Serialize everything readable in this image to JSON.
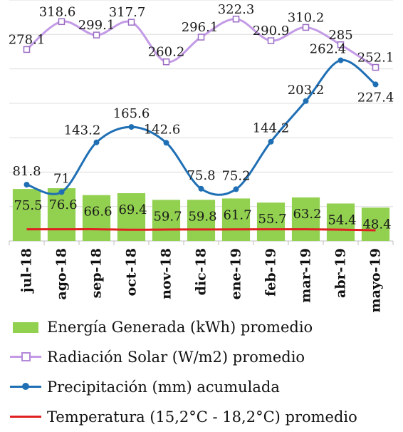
{
  "chart_data": {
    "type": "bar",
    "categories": [
      "jul-18",
      "ago-18",
      "sep-18",
      "oct-18",
      "nov-18",
      "dic-18",
      "ene-19",
      "feb-19",
      "mar-19",
      "abr-19",
      "mayo-19"
    ],
    "series": [
      {
        "name": "Energía Generada (kWh) promedio",
        "kind": "bar",
        "color": "#92d050",
        "values": [
          75.5,
          76.6,
          66.6,
          69.4,
          59.7,
          59.8,
          61.7,
          55.7,
          63.2,
          54.4,
          48.4
        ]
      },
      {
        "name": "Radiación Solar (W/m2) promedio",
        "kind": "line",
        "color": "#c39be6",
        "marker": "square",
        "values": [
          278.1,
          318.6,
          299.1,
          317.7,
          260.2,
          296.1,
          322.3,
          290.9,
          310.2,
          285,
          252.1
        ]
      },
      {
        "name": "Precipitación (mm) acumulada",
        "kind": "line",
        "color": "#1f6fb5",
        "marker": "circle",
        "values": [
          81.8,
          71,
          143.2,
          165.6,
          142.6,
          75.8,
          75.2,
          144.2,
          203.2,
          262.4,
          227.4
        ]
      },
      {
        "name": "Temperatura (15,2°C - 18,2°C) promedio",
        "kind": "line",
        "color": "#e02020",
        "marker": "none",
        "values": [
          16.9,
          16.9,
          17.0,
          16.3,
          16.6,
          16.7,
          16.8,
          16.9,
          16.9,
          16.4,
          15.5
        ]
      }
    ],
    "ylim": [
      0,
      350
    ],
    "grid": true,
    "legend_position": "bottom",
    "title": "",
    "xlabel": "",
    "ylabel": ""
  }
}
